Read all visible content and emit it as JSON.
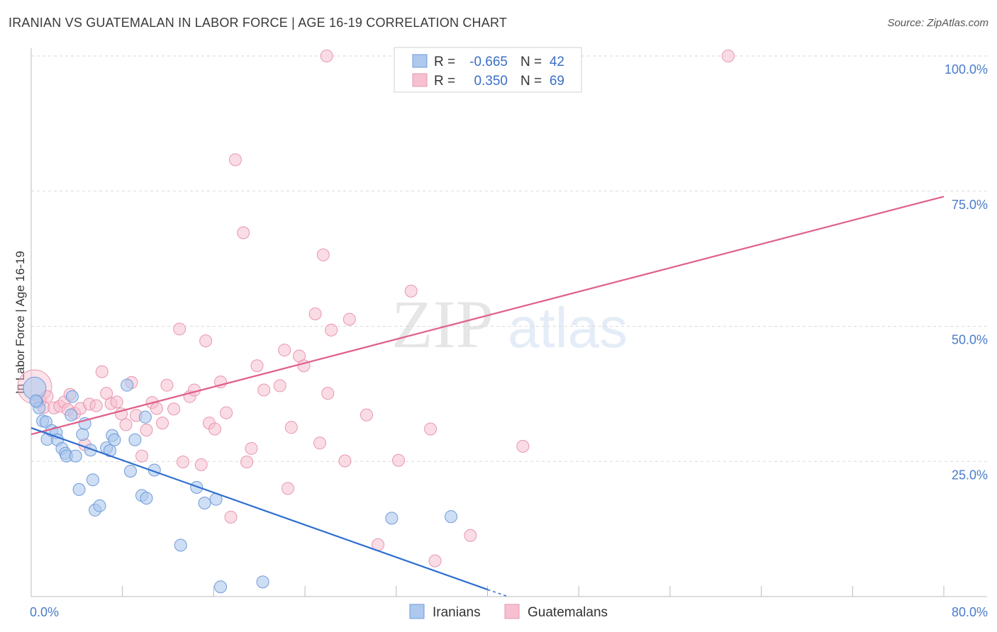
{
  "title": "IRANIAN VS GUATEMALAN IN LABOR FORCE | AGE 16-19 CORRELATION CHART",
  "source": "Source: ZipAtlas.com",
  "watermark": {
    "zip": "ZIP",
    "atlas": "atlas"
  },
  "colors": {
    "blue_fill": "#aec8ee",
    "blue_stroke": "#6f9bd8",
    "blue_line": "#2f6fd0",
    "pink_fill": "#f6c0d0",
    "pink_stroke": "#e896b0",
    "pink_line": "#e0608a",
    "grid": "#d9d9d9",
    "axis_text": "#4a7cc9"
  },
  "legend": {
    "rows": [
      {
        "r_label": "R =",
        "r_value": "-0.665",
        "n_label": "N =",
        "n_value": "42"
      },
      {
        "r_label": "R =",
        "r_value": "0.350",
        "n_label": "N =",
        "n_value": "69"
      }
    ]
  },
  "bottom_legend": [
    "Iranians",
    "Guatemalans"
  ],
  "chart_data": {
    "type": "scatter",
    "title": "IRANIAN VS GUATEMALAN IN LABOR FORCE | AGE 16-19 CORRELATION CHART",
    "xlabel": "",
    "ylabel": "In Labor Force | Age 16-19",
    "xlim": [
      0,
      80
    ],
    "ylim": [
      0,
      100
    ],
    "x_tick_labels": [
      "0.0%",
      "80.0%"
    ],
    "y_ticks": [
      25,
      50,
      75,
      100
    ],
    "y_tick_labels": [
      "25.0%",
      "50.0%",
      "75.0%",
      "100.0%"
    ],
    "grid": true,
    "legend_position": "top-center",
    "series": [
      {
        "name": "Iranians",
        "R": -0.665,
        "N": 42,
        "trend": {
          "x": [
            0,
            40
          ],
          "y": [
            31.2,
            1.3
          ]
        },
        "points": [
          {
            "x": 0.3,
            "y": 38.5,
            "big": true
          },
          {
            "x": 0.5,
            "y": 36.0
          },
          {
            "x": 0.7,
            "y": 34.9
          },
          {
            "x": 1.0,
            "y": 32.5
          },
          {
            "x": 1.3,
            "y": 32.3
          },
          {
            "x": 1.4,
            "y": 29.1
          },
          {
            "x": 1.8,
            "y": 30.7
          },
          {
            "x": 2.2,
            "y": 30.3
          },
          {
            "x": 2.3,
            "y": 29.0
          },
          {
            "x": 2.7,
            "y": 27.4
          },
          {
            "x": 3.0,
            "y": 26.5
          },
          {
            "x": 3.1,
            "y": 26.0
          },
          {
            "x": 3.5,
            "y": 33.6
          },
          {
            "x": 3.6,
            "y": 37.0
          },
          {
            "x": 3.9,
            "y": 26.0
          },
          {
            "x": 4.2,
            "y": 19.8
          },
          {
            "x": 4.5,
            "y": 30.0
          },
          {
            "x": 4.7,
            "y": 32.0
          },
          {
            "x": 5.2,
            "y": 27.1
          },
          {
            "x": 5.4,
            "y": 21.6
          },
          {
            "x": 5.6,
            "y": 16.0
          },
          {
            "x": 6.0,
            "y": 16.8
          },
          {
            "x": 6.6,
            "y": 27.5
          },
          {
            "x": 6.9,
            "y": 27.0
          },
          {
            "x": 7.1,
            "y": 29.8
          },
          {
            "x": 7.3,
            "y": 29.0
          },
          {
            "x": 8.4,
            "y": 39.1
          },
          {
            "x": 8.7,
            "y": 23.2
          },
          {
            "x": 9.1,
            "y": 29.0
          },
          {
            "x": 9.7,
            "y": 18.7
          },
          {
            "x": 10.0,
            "y": 33.2
          },
          {
            "x": 10.1,
            "y": 18.2
          },
          {
            "x": 10.8,
            "y": 23.4
          },
          {
            "x": 13.1,
            "y": 9.5
          },
          {
            "x": 14.5,
            "y": 20.2
          },
          {
            "x": 15.2,
            "y": 17.3
          },
          {
            "x": 16.2,
            "y": 18.0
          },
          {
            "x": 16.6,
            "y": 1.8
          },
          {
            "x": 20.3,
            "y": 2.7
          },
          {
            "x": 31.6,
            "y": 14.5
          },
          {
            "x": 36.8,
            "y": 14.8
          },
          {
            "x": 0.4,
            "y": 36.2
          }
        ]
      },
      {
        "name": "Guatemalans",
        "R": 0.35,
        "N": 69,
        "trend": {
          "x": [
            0,
            80
          ],
          "y": [
            30.0,
            74.0
          ]
        },
        "points": [
          {
            "x": 0.3,
            "y": 38.8,
            "big": true
          },
          {
            "x": 0.8,
            "y": 36.2
          },
          {
            "x": 1.1,
            "y": 35.0
          },
          {
            "x": 1.4,
            "y": 37.0
          },
          {
            "x": 2.0,
            "y": 34.9
          },
          {
            "x": 2.5,
            "y": 35.2
          },
          {
            "x": 2.9,
            "y": 36.0
          },
          {
            "x": 3.2,
            "y": 34.6
          },
          {
            "x": 3.4,
            "y": 37.4
          },
          {
            "x": 3.8,
            "y": 33.9
          },
          {
            "x": 4.3,
            "y": 34.8
          },
          {
            "x": 4.7,
            "y": 28.1
          },
          {
            "x": 5.1,
            "y": 35.6
          },
          {
            "x": 5.7,
            "y": 35.3
          },
          {
            "x": 6.2,
            "y": 41.6
          },
          {
            "x": 6.6,
            "y": 37.6
          },
          {
            "x": 7.0,
            "y": 35.7
          },
          {
            "x": 7.5,
            "y": 36.0
          },
          {
            "x": 7.9,
            "y": 33.8
          },
          {
            "x": 8.3,
            "y": 31.8
          },
          {
            "x": 8.8,
            "y": 39.6
          },
          {
            "x": 9.2,
            "y": 33.5
          },
          {
            "x": 9.7,
            "y": 26.0
          },
          {
            "x": 10.1,
            "y": 30.8
          },
          {
            "x": 10.6,
            "y": 35.9
          },
          {
            "x": 11.0,
            "y": 34.8
          },
          {
            "x": 11.5,
            "y": 32.1
          },
          {
            "x": 11.9,
            "y": 39.1
          },
          {
            "x": 12.5,
            "y": 34.7
          },
          {
            "x": 13.0,
            "y": 49.5
          },
          {
            "x": 13.3,
            "y": 24.9
          },
          {
            "x": 13.9,
            "y": 37.0
          },
          {
            "x": 14.3,
            "y": 38.2
          },
          {
            "x": 14.9,
            "y": 24.4
          },
          {
            "x": 15.3,
            "y": 47.3
          },
          {
            "x": 15.6,
            "y": 32.1
          },
          {
            "x": 16.1,
            "y": 31.0
          },
          {
            "x": 16.6,
            "y": 39.7
          },
          {
            "x": 17.1,
            "y": 34.0
          },
          {
            "x": 17.5,
            "y": 14.7
          },
          {
            "x": 17.9,
            "y": 80.8
          },
          {
            "x": 18.6,
            "y": 67.3
          },
          {
            "x": 18.9,
            "y": 24.9
          },
          {
            "x": 19.3,
            "y": 27.4
          },
          {
            "x": 19.8,
            "y": 42.7
          },
          {
            "x": 20.4,
            "y": 38.2
          },
          {
            "x": 21.8,
            "y": 39.0
          },
          {
            "x": 22.2,
            "y": 45.6
          },
          {
            "x": 22.5,
            "y": 20.0
          },
          {
            "x": 22.8,
            "y": 31.3
          },
          {
            "x": 23.5,
            "y": 44.5
          },
          {
            "x": 23.9,
            "y": 42.7
          },
          {
            "x": 24.9,
            "y": 52.3
          },
          {
            "x": 25.3,
            "y": 28.4
          },
          {
            "x": 25.6,
            "y": 63.2
          },
          {
            "x": 25.9,
            "y": 100.0
          },
          {
            "x": 26.3,
            "y": 49.3
          },
          {
            "x": 27.5,
            "y": 25.1
          },
          {
            "x": 27.9,
            "y": 51.3
          },
          {
            "x": 29.4,
            "y": 33.6
          },
          {
            "x": 30.4,
            "y": 9.6
          },
          {
            "x": 32.2,
            "y": 25.2
          },
          {
            "x": 33.3,
            "y": 56.5
          },
          {
            "x": 35.0,
            "y": 31.0
          },
          {
            "x": 35.4,
            "y": 6.6
          },
          {
            "x": 38.5,
            "y": 11.3
          },
          {
            "x": 43.1,
            "y": 27.8
          },
          {
            "x": 61.1,
            "y": 100.0
          },
          {
            "x": 26.0,
            "y": 37.6
          }
        ]
      }
    ]
  }
}
